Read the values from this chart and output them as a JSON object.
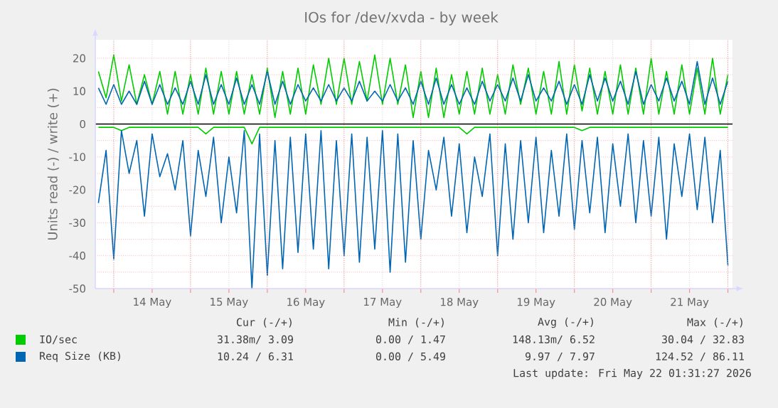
{
  "chart_data": {
    "type": "line",
    "title": "IOs for /dev/xvda - by week",
    "ylabel": "Units read (-) / write (+)",
    "x": [
      "2026-05-13T19:12",
      "2026-05-13T21:36",
      "2026-05-14T00:00",
      "2026-05-14T02:24",
      "2026-05-14T04:48",
      "2026-05-14T07:12",
      "2026-05-14T09:36",
      "2026-05-14T12:00",
      "2026-05-14T14:24",
      "2026-05-14T16:48",
      "2026-05-14T19:12",
      "2026-05-14T21:36",
      "2026-05-15T00:00",
      "2026-05-15T02:24",
      "2026-05-15T04:48",
      "2026-05-15T07:12",
      "2026-05-15T09:36",
      "2026-05-15T12:00",
      "2026-05-15T14:24",
      "2026-05-15T16:48",
      "2026-05-15T19:12",
      "2026-05-15T21:36",
      "2026-05-16T00:00",
      "2026-05-16T02:24",
      "2026-05-16T04:48",
      "2026-05-16T07:12",
      "2026-05-16T09:36",
      "2026-05-16T12:00",
      "2026-05-16T14:24",
      "2026-05-16T16:48",
      "2026-05-16T19:12",
      "2026-05-16T21:36",
      "2026-05-17T00:00",
      "2026-05-17T02:24",
      "2026-05-17T04:48",
      "2026-05-17T07:12",
      "2026-05-17T09:36",
      "2026-05-17T12:00",
      "2026-05-17T14:24",
      "2026-05-17T16:48",
      "2026-05-17T19:12",
      "2026-05-17T21:36",
      "2026-05-18T00:00",
      "2026-05-18T02:24",
      "2026-05-18T04:48",
      "2026-05-18T07:12",
      "2026-05-18T09:36",
      "2026-05-18T12:00",
      "2026-05-18T14:24",
      "2026-05-18T16:48",
      "2026-05-18T19:12",
      "2026-05-18T21:36",
      "2026-05-19T00:00",
      "2026-05-19T02:24",
      "2026-05-19T04:48",
      "2026-05-19T07:12",
      "2026-05-19T09:36",
      "2026-05-19T12:00",
      "2026-05-19T14:24",
      "2026-05-19T16:48",
      "2026-05-19T19:12",
      "2026-05-19T21:36",
      "2026-05-20T00:00",
      "2026-05-20T02:24",
      "2026-05-20T04:48",
      "2026-05-20T07:12",
      "2026-05-20T09:36",
      "2026-05-20T12:00",
      "2026-05-20T14:24",
      "2026-05-20T16:48",
      "2026-05-20T19:12",
      "2026-05-20T21:36",
      "2026-05-21T00:00",
      "2026-05-21T02:24",
      "2026-05-21T04:48",
      "2026-05-21T07:12",
      "2026-05-21T09:36",
      "2026-05-21T12:00",
      "2026-05-21T14:24",
      "2026-05-21T16:48",
      "2026-05-21T19:12",
      "2026-05-21T21:36",
      "2026-05-22T00:00"
    ],
    "series": [
      {
        "color": "#00cc00",
        "values": [
          -1,
          -1,
          -1,
          -2,
          -1,
          -1,
          -1,
          -1,
          -1,
          -1,
          -1,
          -1,
          -1,
          -1,
          -3,
          -1,
          -1,
          -1,
          -1,
          -1,
          -6,
          -1,
          -1,
          -1,
          -1,
          -1,
          -1,
          -1,
          -1,
          -1,
          -1,
          -1,
          -1,
          -1,
          -1,
          -1,
          -1,
          -1,
          -1,
          -1,
          -1,
          -1,
          -1,
          -1,
          -1,
          -1,
          -1,
          -1,
          -3,
          -1,
          -1,
          -1,
          -1,
          -1,
          -1,
          -1,
          -1,
          -1,
          -1,
          -1,
          -1,
          -1,
          -1,
          -2,
          -1,
          -1,
          -1,
          -1,
          -1,
          -1,
          -1,
          -1,
          -1,
          -1,
          -1,
          -1,
          -1,
          -1,
          -1,
          -1,
          -1,
          -1,
          -1
        ]
      },
      {
        "name": "IO/sec",
        "color": "#00cc00",
        "values": [
          16,
          8,
          21,
          7,
          18,
          6,
          15,
          6,
          16,
          3,
          16,
          3,
          15,
          3,
          17,
          3,
          16,
          3,
          16,
          3,
          15,
          3,
          17,
          2,
          16,
          3,
          17,
          3,
          18,
          6,
          20,
          6,
          20,
          6,
          19,
          7,
          21,
          6,
          20,
          6,
          18,
          2,
          16,
          2,
          17,
          2,
          15,
          3,
          16,
          3,
          17,
          3,
          15,
          3,
          18,
          6,
          17,
          3,
          16,
          3,
          19,
          3,
          18,
          4,
          17,
          3,
          16,
          3,
          18,
          3,
          17,
          3,
          20,
          3,
          16,
          3,
          18,
          3,
          17,
          3,
          20,
          3,
          15
        ]
      },
      {
        "color": "#0066b3",
        "values": [
          -24,
          -8,
          -41,
          -2,
          -15,
          -5,
          -28,
          -3,
          -16,
          -9,
          -20,
          -5,
          -34,
          -8,
          -22,
          -4,
          -30,
          -10,
          -27,
          -2,
          -50,
          -3,
          -46,
          -5,
          -44,
          -4,
          -39,
          -3,
          -38,
          -2,
          -44,
          -5,
          -40,
          -3,
          -42,
          -4,
          -38,
          -2,
          -45,
          -3,
          -42,
          -5,
          -35,
          -8,
          -20,
          -4,
          -28,
          -6,
          -33,
          -10,
          -22,
          -3,
          -40,
          -6,
          -35,
          -5,
          -30,
          -4,
          -33,
          -8,
          -28,
          -3,
          -32,
          -5,
          -27,
          -4,
          -33,
          -6,
          -25,
          -3,
          -30,
          -5,
          -28,
          -4,
          -35,
          -6,
          -22,
          -3,
          -26,
          -4,
          -30,
          -8,
          -43
        ]
      },
      {
        "name": "Req Size (KB)",
        "color": "#0066b3",
        "values": [
          11,
          6,
          12,
          6,
          10,
          6,
          13,
          6,
          12,
          6,
          11,
          6,
          13,
          6,
          15,
          6,
          12,
          6,
          14,
          6,
          12,
          6,
          16,
          6,
          13,
          6,
          12,
          7,
          11,
          7,
          12,
          7,
          11,
          7,
          13,
          7,
          10,
          7,
          12,
          7,
          11,
          6,
          13,
          6,
          14,
          6,
          12,
          6,
          11,
          6,
          13,
          7,
          12,
          7,
          14,
          7,
          15,
          7,
          11,
          7,
          13,
          6,
          12,
          6,
          15,
          7,
          14,
          7,
          13,
          6,
          16,
          6,
          12,
          7,
          14,
          7,
          13,
          6,
          19,
          6,
          14,
          6,
          13
        ]
      }
    ],
    "xlim": [
      "2026-05-13T18:14",
      "2026-05-22T01:26"
    ],
    "xticks": [
      {
        "value": "2026-05-14",
        "label": null
      },
      {
        "value": "2026-05-14T12:00",
        "label": "14 May"
      },
      {
        "value": "2026-05-15",
        "label": null
      },
      {
        "value": "2026-05-15T12:00",
        "label": "15 May"
      },
      {
        "value": "2026-05-16",
        "label": null
      },
      {
        "value": "2026-05-16T12:00",
        "label": "16 May"
      },
      {
        "value": "2026-05-17",
        "label": null
      },
      {
        "value": "2026-05-17T12:00",
        "label": "17 May"
      },
      {
        "value": "2026-05-18",
        "label": null
      },
      {
        "value": "2026-05-18T12:00",
        "label": "18 May"
      },
      {
        "value": "2026-05-19",
        "label": null
      },
      {
        "value": "2026-05-19T12:00",
        "label": "19 May"
      },
      {
        "value": "2026-05-20",
        "label": null
      },
      {
        "value": "2026-05-20T12:00",
        "label": "20 May"
      },
      {
        "value": "2026-05-21",
        "label": null
      },
      {
        "value": "2026-05-21T12:00",
        "label": "21 May"
      },
      {
        "value": "2026-05-22",
        "label": null
      }
    ],
    "ylim": [
      -50,
      25.6
    ],
    "yticks": [
      -50,
      -40,
      -30,
      -20,
      -10,
      0,
      10,
      20
    ],
    "ref_lines": [
      {
        "axis": "y",
        "value": 0,
        "color": "#000000"
      }
    ],
    "grid": true,
    "legend": "bottom",
    "marker": "none",
    "line_style": "solid",
    "annotations": [
      "Cur (-/+)",
      "Min (-/+)",
      "Avg (-/+)",
      "Max (-/+)",
      "31.38m/ 3.09",
      "0.00 / 1.47",
      "148.13m/ 6.52",
      "30.04 / 32.83",
      "10.24 / 6.31",
      "0.00 / 5.49",
      "9.97 / 7.97",
      "124.52 / 86.11",
      "Last update: Fri May 22 01:31:27 2026"
    ]
  }
}
